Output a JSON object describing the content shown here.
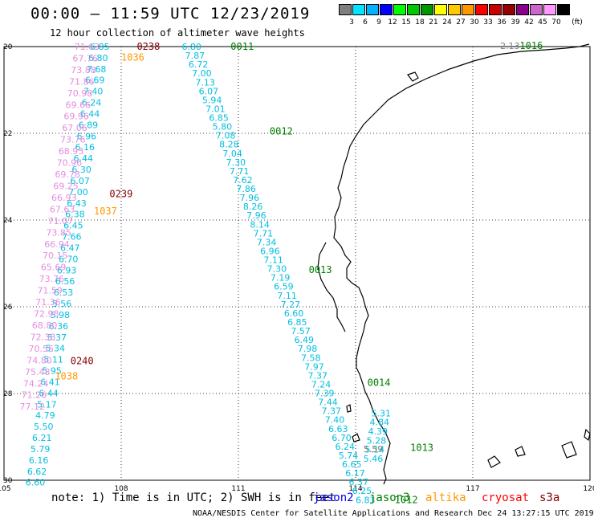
{
  "header": {
    "title": "00:00 – 11:59 UTC 12/23/2019",
    "subtitle": "12 hour collection of altimeter wave heights"
  },
  "legend": {
    "unit": "(ft)",
    "items": [
      {
        "label": "3",
        "color": "#7f7f7f"
      },
      {
        "label": "6",
        "color": "#00e5ff"
      },
      {
        "label": "9",
        "color": "#00b2ff"
      },
      {
        "label": "12",
        "color": "#0000ff"
      },
      {
        "label": "15",
        "color": "#00ff00"
      },
      {
        "label": "18",
        "color": "#00c800"
      },
      {
        "label": "21",
        "color": "#009600"
      },
      {
        "label": "24",
        "color": "#ffff00"
      },
      {
        "label": "27",
        "color": "#ffc800"
      },
      {
        "label": "30",
        "color": "#ff9600"
      },
      {
        "label": "33",
        "color": "#ff0000"
      },
      {
        "label": "36",
        "color": "#c80000"
      },
      {
        "label": "39",
        "color": "#960000"
      },
      {
        "label": "42",
        "color": "#8b008b"
      },
      {
        "label": "45",
        "color": "#cc66cc"
      },
      {
        "label": "70",
        "color": "#ff99ff"
      },
      {
        "label": "",
        "color": "#000000"
      }
    ]
  },
  "axes": {
    "lon_ticks": [
      "105",
      "108",
      "111",
      "114",
      "117",
      "120"
    ],
    "lat_ticks": [
      "20",
      "22",
      "24",
      "26",
      "28",
      "30"
    ]
  },
  "colors": {
    "jason2": "#0000ff",
    "jason3": "#008000",
    "altika": "#ff9900",
    "cryosat": "#ff0000",
    "s3a": "#880000",
    "swh_cyan": "#00bfe0",
    "swh_pink": "#e58ce0",
    "swh_gray": "#7f7f7f"
  },
  "time_labels": [
    {
      "text": "0011",
      "lon": 110.8,
      "lat": 20.0,
      "sat": "jason3"
    },
    {
      "text": "0012",
      "lon": 111.8,
      "lat": 21.95,
      "sat": "jason3"
    },
    {
      "text": "0013",
      "lon": 112.8,
      "lat": 25.15,
      "sat": "jason3"
    },
    {
      "text": "0014",
      "lon": 114.3,
      "lat": 27.75,
      "sat": "jason3"
    },
    {
      "text": "1013",
      "lon": 115.4,
      "lat": 29.25,
      "sat": "jason3"
    },
    {
      "text": "1012",
      "lon": 115.0,
      "lat": 30.45,
      "sat": "jason3"
    },
    {
      "text": "1016",
      "lon": 118.2,
      "lat": 19.98,
      "sat": "jason3"
    },
    {
      "text": "0238",
      "lon": 108.4,
      "lat": 20.0,
      "sat": "s3a"
    },
    {
      "text": "0239",
      "lon": 107.7,
      "lat": 23.4,
      "sat": "s3a"
    },
    {
      "text": "0240",
      "lon": 106.7,
      "lat": 27.25,
      "sat": "s3a"
    },
    {
      "text": "1036",
      "lon": 108.0,
      "lat": 20.25,
      "sat": "altika"
    },
    {
      "text": "1037",
      "lon": 107.3,
      "lat": 23.8,
      "sat": "altika"
    },
    {
      "text": "1038",
      "lon": 106.3,
      "lat": 27.6,
      "sat": "altika"
    }
  ],
  "tracks": [
    {
      "color_key": "swh_cyan",
      "start": [
        109.55,
        20.0
      ],
      "end": [
        114.0,
        30.45
      ],
      "values": [
        "6.80",
        "7.87",
        "6.72",
        "7.00",
        "7.13",
        "6.07",
        "5.94",
        "7.01",
        "6.85",
        "5.80",
        "7.08",
        "8.28",
        "7.04",
        "7.30",
        "7.71",
        "7.62",
        "7.86",
        "7.96",
        "8.26",
        "7.96",
        "8.14",
        "7.71",
        "7.34",
        "6.96",
        "7.11",
        "7.30",
        "7.19",
        "6.59",
        "7.11",
        "7.27",
        "6.60",
        "6.85",
        "7.57",
        "6.49",
        "7.98",
        "7.58",
        "7.97",
        "7.37",
        "7.24",
        "7.39",
        "7.44",
        "7.37",
        "7.40",
        "6.63",
        "6.70",
        "6.24",
        "5.74",
        "6.65",
        "6.17",
        "6.37",
        "6.25",
        "6.83"
      ]
    },
    {
      "color_key": "swh_cyan",
      "start": [
        107.2,
        20.0
      ],
      "end": [
        105.55,
        30.05
      ],
      "values": [
        "6.85",
        "6.80",
        "7.68",
        "6.69",
        "7.40",
        "6.24",
        "6.44",
        "6.89",
        "6.96",
        "6.16",
        "6.44",
        "6.30",
        "6.07",
        "7.00",
        "6.43",
        "6.38",
        "6.45",
        "7.66",
        "6.47",
        "6.70",
        "6.93",
        "6.56",
        "6.53",
        "5.56",
        "5.98",
        "6.36",
        "5.37",
        "5.34",
        "5.11",
        "5.95",
        "6.41",
        "6.44",
        "5.17",
        "4.79",
        "5.50",
        "6.21",
        "5.79",
        "6.16",
        "6.62",
        "6.60"
      ]
    },
    {
      "color_key": "swh_pink",
      "start": [
        106.8,
        20.0
      ],
      "end": [
        105.4,
        28.3
      ],
      "values": [
        "71.63",
        "67.76",
        "73.88",
        "71.86",
        "70.98",
        "69.66",
        "69.96",
        "67.06",
        "73.76",
        "68.95",
        "70.96",
        "69.78",
        "69.25",
        "66.93",
        "67.63",
        "71.07",
        "73.85",
        "66.94",
        "70.15",
        "65.69",
        "73.76",
        "71.59",
        "71.36",
        "72.98",
        "68.80",
        "72.38",
        "70.55",
        "74.80",
        "75.48",
        "74.24",
        "71.26",
        "77.12"
      ]
    },
    {
      "color_key": "swh_cyan",
      "start": [
        114.4,
        28.45
      ],
      "end": [
        114.2,
        29.5
      ],
      "values": [
        "5.31",
        "4.84",
        "4.39",
        "5.28",
        "5.14",
        "5.46"
      ]
    }
  ],
  "misc_values": [
    {
      "text": "2.13",
      "lon": 117.7,
      "lat": 19.98,
      "color_key": "swh_gray"
    },
    {
      "text": "5.59",
      "lon": 114.2,
      "lat": 29.28,
      "color_key": "swh_gray"
    }
  ],
  "bottom": {
    "note": "note:  1) Time is in UTC;  2) SWH is in feet",
    "jason2": "jason2",
    "jason3": "jason3",
    "altika": "altika",
    "cryosat": "cryosat",
    "s3a": "s3a",
    "credits": "NOAA/NESDIS Center for Satellite Applications and Research    Dec 24 13:27:15 UTC 2019"
  }
}
